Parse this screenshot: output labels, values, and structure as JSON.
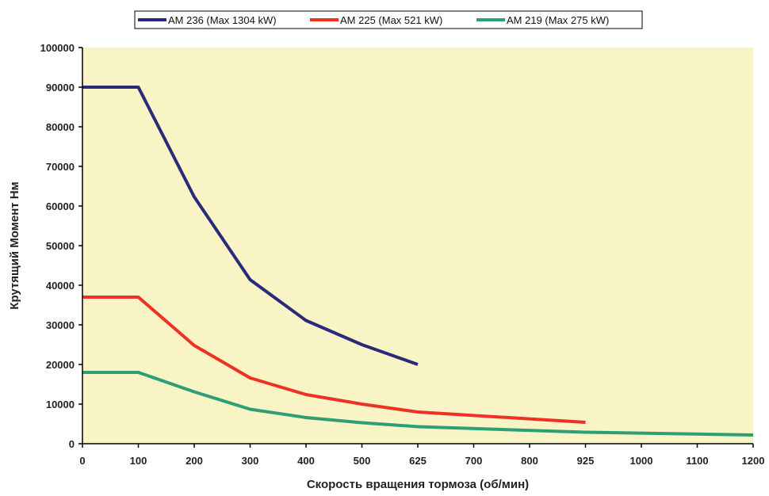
{
  "chart_data": {
    "type": "line",
    "xlabel": "Скорость вращения тормоза (об/мин)",
    "ylabel": "Крутящий Момент Нм",
    "x_ticks": [
      "0",
      "100",
      "200",
      "300",
      "400",
      "500",
      "625",
      "700",
      "800",
      "925",
      "1000",
      "1100",
      "1200"
    ],
    "y_ticks": [
      "0",
      "10000",
      "20000",
      "30000",
      "40000",
      "50000",
      "60000",
      "70000",
      "80000",
      "90000",
      "100000"
    ],
    "ylim": [
      0,
      100000
    ],
    "grid": false,
    "legend_position": "top",
    "plot_background": "#F8F4C6",
    "series": [
      {
        "name": "AM 236 (Max 1304 kW)",
        "color": "#2B2A7A",
        "x_positions": [
          0,
          1,
          2,
          3,
          4,
          5,
          6
        ],
        "values": [
          90000,
          90000,
          62300,
          41400,
          31100,
          25000,
          20000
        ]
      },
      {
        "name": "AM 225 (Max 521 kW)",
        "color": "#EE3124",
        "x_positions": [
          0,
          1,
          2,
          3,
          4,
          5,
          6,
          9
        ],
        "values": [
          37000,
          37000,
          24800,
          16600,
          12400,
          10000,
          8000,
          5400
        ]
      },
      {
        "name": "AM 219 (Max 275 kW)",
        "color": "#2E9E74",
        "x_positions": [
          0,
          1,
          2,
          3,
          4,
          5,
          6,
          9,
          12
        ],
        "values": [
          18000,
          18000,
          13100,
          8700,
          6600,
          5300,
          4300,
          2900,
          2200
        ]
      }
    ]
  }
}
